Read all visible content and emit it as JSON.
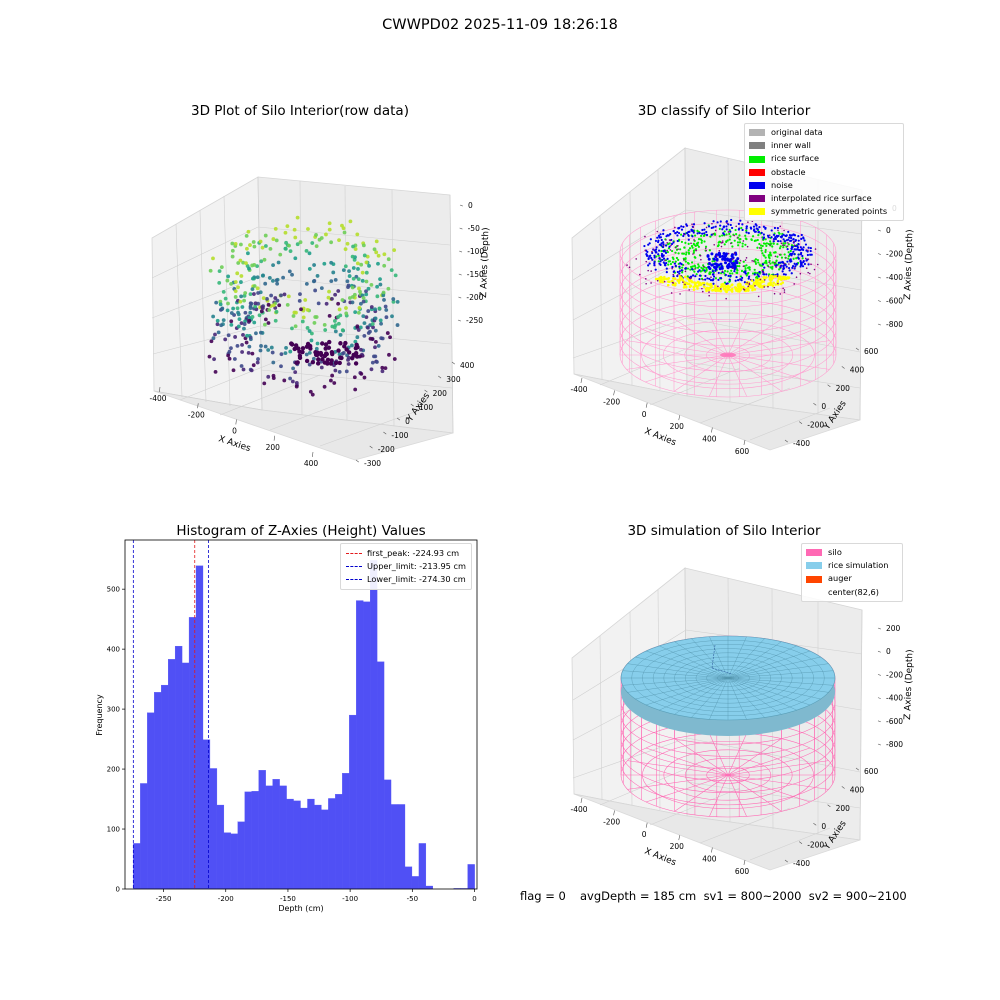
{
  "figure_title": "CWWPD02 2025-11-09 18:26:18",
  "colors": {
    "viridis_dark": "#440154",
    "viridis_teal": "#21918c",
    "viridis_yellow": "#fde725",
    "wall": "#ff9ccf",
    "hist_bar": "#5050f5",
    "hist_bar_edge": "#3b3bf0",
    "first_peak_line": "#e31a1c",
    "limit_line": "#0000cc"
  },
  "panels": {
    "raw": {
      "title": "3D Plot of Silo Interior(row data)",
      "xlabel": "X Axies",
      "ylabel": "Y Axies",
      "zlabel": "Z Axies (Depth)",
      "xticks": [
        "-400",
        "-200",
        "0",
        "200",
        "400"
      ],
      "yticks": [
        "400",
        "300",
        "200",
        "100",
        "0",
        "-100",
        "-200",
        "-300"
      ],
      "zticks": [
        "0",
        "-50",
        "-100",
        "-150",
        "-200",
        "-250"
      ]
    },
    "classify": {
      "title": "3D classify of Silo Interior",
      "xlabel": "X Axies",
      "ylabel": "Y Axies",
      "zlabel": "Z Axies (Depth)",
      "xticks": [
        "-400",
        "-200",
        "0",
        "200",
        "400",
        "600"
      ],
      "yticks": [
        "600",
        "400",
        "200",
        "0",
        "-200",
        "-400"
      ],
      "zticks": [
        "0",
        "-200",
        "-400",
        "-600",
        "-800"
      ],
      "ztick_partial": "0",
      "legend": [
        {
          "label": "original data",
          "color": "#b3b3b3"
        },
        {
          "label": "inner wall",
          "color": "#808080"
        },
        {
          "label": "rice surface",
          "color": "#00ee00"
        },
        {
          "label": "obstacle",
          "color": "#ff0000"
        },
        {
          "label": "noise",
          "color": "#0000ee"
        },
        {
          "label": "interpolated rice surface",
          "color": "#800080"
        },
        {
          "label": "symmetric generated points",
          "color": "#ffff00"
        }
      ]
    },
    "simulation": {
      "title": "3D simulation of Silo Interior",
      "xlabel": "X Axies",
      "ylabel": "Y Axies",
      "zlabel": "Z Axies (Depth)",
      "xticks": [
        "-400",
        "-200",
        "0",
        "200",
        "400",
        "600"
      ],
      "yticks": [
        "600",
        "400",
        "200",
        "0",
        "-200",
        "-400"
      ],
      "zticks": [
        "200",
        "0",
        "-200",
        "-400",
        "-600",
        "-800"
      ],
      "legend": [
        {
          "label": "silo",
          "color": "#ff69b4"
        },
        {
          "label": "rice simulation",
          "color": "#87ceeb"
        },
        {
          "label": "auger",
          "color": "#ff4500"
        },
        {
          "label": "center(82,6)",
          "color": "#ffffff"
        }
      ]
    }
  },
  "footer": {
    "flag": "flag = 0",
    "stats": "avgDepth = 185 cm  sv1 = 800~2000  sv2 = 900~2100"
  },
  "chart_data": [
    {
      "type": "bar",
      "title": "Histogram of Z-Axies (Height) Values",
      "xlabel": "Depth (cm)",
      "ylabel": "Frequency",
      "xlim": [
        -281,
        2
      ],
      "ylim": [
        0,
        582
      ],
      "xticks": [
        -250,
        -200,
        -150,
        -100,
        -50,
        0
      ],
      "yticks": [
        0,
        100,
        200,
        300,
        400,
        500
      ],
      "bin_width": 5.6,
      "bin_left_edges": [
        -274.3,
        -268.7,
        -263.1,
        -257.5,
        -251.9,
        -246.3,
        -240.7,
        -235.1,
        -229.5,
        -223.9,
        -218.3,
        -212.7,
        -207.1,
        -201.5,
        -195.9,
        -190.3,
        -184.7,
        -179.1,
        -173.5,
        -167.9,
        -162.3,
        -156.7,
        -151.1,
        -145.5,
        -139.9,
        -134.3,
        -128.7,
        -123.1,
        -117.5,
        -111.9,
        -106.3,
        -100.7,
        -95.1,
        -89.5,
        -83.9,
        -78.3,
        -72.7,
        -67.1,
        -61.5,
        -55.9,
        -50.3,
        -44.7,
        -39.1,
        -33.5,
        -27.9,
        -22.3,
        -16.7,
        -11.1,
        -5.5
      ],
      "values": [
        76,
        176,
        294,
        328,
        340,
        383,
        405,
        377,
        453,
        539,
        249,
        201,
        140,
        94,
        92,
        112,
        162,
        163,
        198,
        172,
        183,
        172,
        150,
        147,
        135,
        150,
        140,
        132,
        151,
        158,
        193,
        290,
        481,
        479,
        548,
        379,
        182,
        141,
        141,
        37,
        21,
        76,
        5,
        0,
        0,
        0,
        1,
        1,
        41
      ],
      "vlines": [
        {
          "name": "first_peak",
          "label": "first_peak: -224.93 cm",
          "x": -224.93,
          "color": "#e31a1c"
        },
        {
          "name": "upper_limit",
          "label": "Upper_limit: -213.95 cm",
          "x": -213.95,
          "color": "#0000cc"
        },
        {
          "name": "lower_limit",
          "label": "Lower_limit: -274.30 cm",
          "x": -274.3,
          "color": "#0000cc"
        }
      ],
      "legend_position": "upper right",
      "grid": false
    }
  ]
}
